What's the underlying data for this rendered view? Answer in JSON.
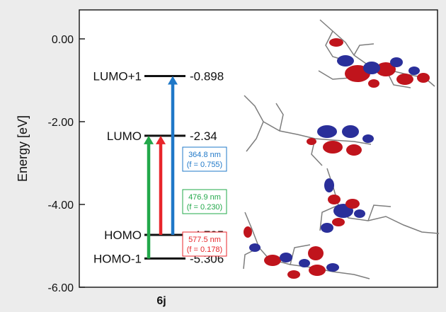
{
  "chart_data": {
    "type": "energy-level-diagram",
    "ylabel": "Energy [eV]",
    "ylim": [
      -6.0,
      0.7
    ],
    "yticks": [
      "0.00",
      "-2.00",
      "-4.00",
      "-6.00"
    ],
    "ytick_values": [
      0.0,
      -2.0,
      -4.0,
      -6.0
    ],
    "category": "6j",
    "levels": [
      {
        "name": "LUMO+1",
        "energy": -0.898,
        "value_label": "-0.898"
      },
      {
        "name": "LUMO",
        "energy": -2.34,
        "value_label": "-2.34"
      },
      {
        "name": "HOMO",
        "energy": -4.735,
        "value_label": "-4.735"
      },
      {
        "name": "HOMO-1",
        "energy": -5.306,
        "value_label": "-5.306"
      }
    ],
    "transitions": [
      {
        "from": "HOMO-1",
        "to": "LUMO",
        "wavelength": "476.9 nm",
        "oscillator": "(f = 0.230)",
        "color": "#22a84a"
      },
      {
        "from": "HOMO",
        "to": "LUMO",
        "wavelength": "577.5 nm",
        "oscillator": "(f = 0.178)",
        "color": "#e8262b"
      },
      {
        "from": "HOMO",
        "to": "LUMO+1",
        "wavelength": "364.8 nm",
        "oscillator": "(f = 0.755)",
        "color": "#1f78c8"
      }
    ]
  },
  "colors": {
    "orbital_positive": "#c0141c",
    "orbital_negative": "#2a2f9a",
    "molecule_skeleton": "#7d7d7d",
    "background": "#ececec"
  }
}
